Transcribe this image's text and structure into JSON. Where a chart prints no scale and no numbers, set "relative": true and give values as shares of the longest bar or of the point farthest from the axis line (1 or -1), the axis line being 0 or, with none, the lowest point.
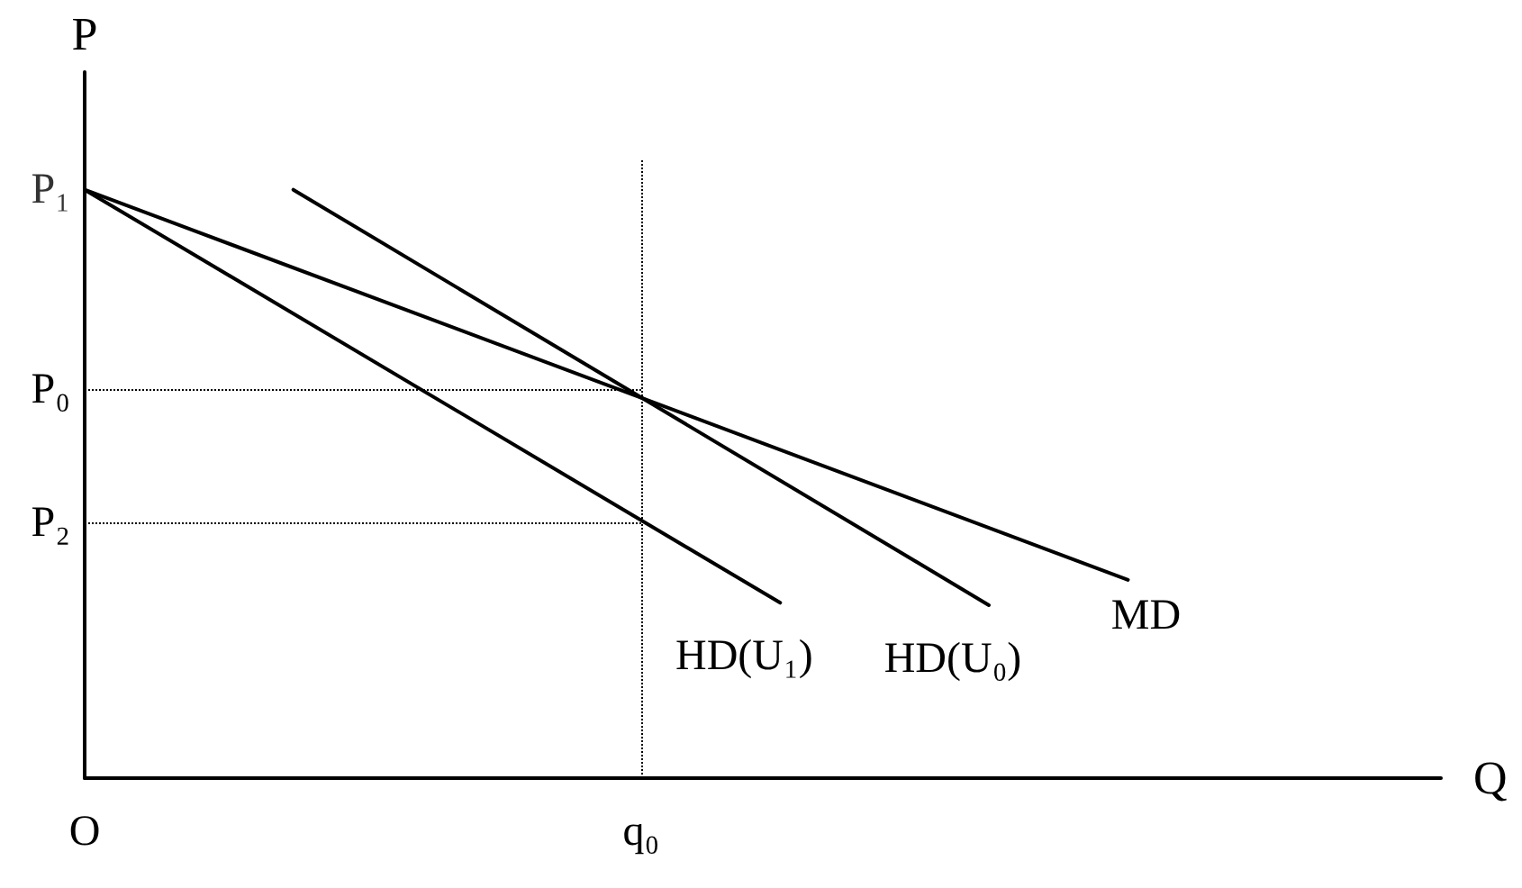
{
  "chart_data": {
    "type": "line",
    "relative": true,
    "xlabel": "Q",
    "ylabel": "P",
    "categories": [
      "O",
      null,
      null,
      null,
      null,
      null,
      null,
      null,
      null,
      null,
      null,
      null,
      null,
      null,
      null,
      null,
      "q₀",
      null,
      null,
      null,
      null,
      null,
      null,
      null,
      null,
      null,
      null,
      null,
      null,
      null,
      null,
      null,
      null,
      null,
      null,
      null,
      null,
      null,
      null,
      null
    ],
    "series": [
      {
        "name": "HD(U₁)",
        "color": "#000000",
        "values": [
          1,
          null,
          null,
          null,
          null,
          null,
          null,
          null,
          null,
          null,
          null,
          null,
          null,
          null,
          null,
          null,
          null,
          null,
          null,
          null,
          0.298,
          null,
          null,
          null,
          null,
          null,
          null,
          null,
          null,
          null,
          null,
          null,
          null,
          null,
          null,
          null,
          null,
          null,
          null,
          null
        ]
      },
      {
        "name": "HD(U₀)",
        "color": "#000000",
        "values": [
          null,
          null,
          null,
          null,
          null,
          null,
          1,
          null,
          null,
          null,
          null,
          null,
          null,
          null,
          null,
          null,
          null,
          null,
          null,
          null,
          null,
          null,
          null,
          null,
          null,
          null,
          0.294,
          null,
          null,
          null,
          null,
          null,
          null,
          null,
          null,
          null,
          null,
          null,
          null,
          null
        ]
      },
      {
        "name": "MD",
        "color": "#000000",
        "values": [
          1,
          null,
          null,
          null,
          null,
          null,
          null,
          null,
          null,
          null,
          null,
          null,
          null,
          null,
          null,
          null,
          null,
          null,
          null,
          null,
          null,
          null,
          null,
          null,
          null,
          null,
          null,
          null,
          null,
          null,
          0.337,
          null,
          null,
          null,
          null,
          null,
          null,
          null,
          null,
          null
        ]
      }
    ],
    "ref_lines": [
      {
        "axis": "x",
        "value": "q₀",
        "line_style": "dotted",
        "color": "#000000"
      },
      {
        "axis": "y",
        "value": 0.66,
        "label": "P₀",
        "line_style": "dotted",
        "color": "#000000"
      },
      {
        "axis": "y",
        "value": 0.433,
        "label": "P₂",
        "line_style": "dotted",
        "color": "#000000"
      }
    ],
    "annotations": [
      {
        "text": "P₁",
        "x": "O",
        "y": 1
      }
    ],
    "grid": false,
    "legend": false,
    "line_style": "solid"
  }
}
